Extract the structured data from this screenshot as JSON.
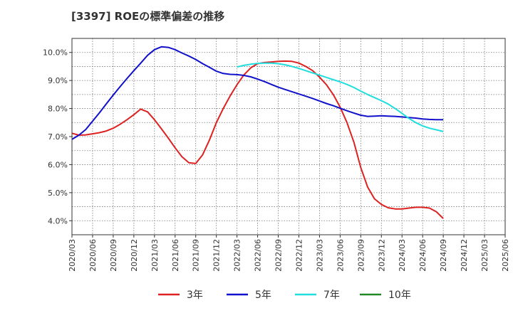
{
  "chart_data": {
    "type": "line",
    "title": "[3397]  ROEの標準偏差の推移",
    "xlabel": "",
    "ylabel": "",
    "ylim": [
      3.5,
      10.5
    ],
    "y_ticks": [
      "4.0%",
      "5.0%",
      "6.0%",
      "7.0%",
      "8.0%",
      "9.0%",
      "10.0%"
    ],
    "y_tick_values": [
      4.0,
      5.0,
      6.0,
      7.0,
      8.0,
      9.0,
      10.0
    ],
    "x_start": "2020/03",
    "x_ticks": [
      "2020/03",
      "2020/06",
      "2020/09",
      "2020/12",
      "2021/03",
      "2021/06",
      "2021/09",
      "2021/12",
      "2022/03",
      "2022/06",
      "2022/09",
      "2022/12",
      "2023/03",
      "2023/06",
      "2023/09",
      "2023/12",
      "2024/03",
      "2024/06",
      "2024/09",
      "2024/12",
      "2025/03",
      "2025/06"
    ],
    "grid": true,
    "legend_position": "bottom",
    "series": [
      {
        "name": "3年",
        "color": "#dd2222",
        "start_index": 0,
        "values": [
          7.12,
          7.05,
          7.06,
          7.1,
          7.14,
          7.2,
          7.3,
          7.44,
          7.6,
          7.78,
          7.98,
          7.88,
          7.6,
          7.28,
          6.95,
          6.6,
          6.28,
          6.07,
          6.04,
          6.35,
          6.88,
          7.5,
          8.0,
          8.45,
          8.85,
          9.2,
          9.45,
          9.6,
          9.64,
          9.66,
          9.68,
          9.69,
          9.68,
          9.62,
          9.5,
          9.35,
          9.12,
          8.85,
          8.5,
          8.05,
          7.5,
          6.8,
          5.9,
          5.2,
          4.78,
          4.58,
          4.46,
          4.42,
          4.42,
          4.45,
          4.48,
          4.48,
          4.45,
          4.32,
          4.08
        ]
      },
      {
        "name": "5年",
        "color": "#1111cc",
        "start_index": 0,
        "values": [
          6.9,
          7.05,
          7.25,
          7.55,
          7.85,
          8.17,
          8.48,
          8.78,
          9.07,
          9.35,
          9.62,
          9.9,
          10.1,
          10.2,
          10.18,
          10.1,
          9.98,
          9.87,
          9.75,
          9.6,
          9.47,
          9.33,
          9.25,
          9.22,
          9.21,
          9.18,
          9.13,
          9.05,
          8.96,
          8.86,
          8.76,
          8.68,
          8.6,
          8.52,
          8.44,
          8.36,
          8.27,
          8.18,
          8.1,
          8.01,
          7.92,
          7.84,
          7.76,
          7.72,
          7.73,
          7.74,
          7.73,
          7.72,
          7.7,
          7.68,
          7.66,
          7.63,
          7.61,
          7.6,
          7.6
        ]
      },
      {
        "name": "7年",
        "color": "#22dddd",
        "start_index": 24,
        "values": [
          9.48,
          9.54,
          9.58,
          9.61,
          9.62,
          9.62,
          9.6,
          9.56,
          9.5,
          9.43,
          9.35,
          9.27,
          9.19,
          9.11,
          9.03,
          8.95,
          8.86,
          8.75,
          8.62,
          8.5,
          8.39,
          8.28,
          8.16,
          8.0,
          7.83,
          7.65,
          7.5,
          7.38,
          7.3,
          7.24,
          7.18
        ]
      },
      {
        "name": "10年",
        "color": "#228822",
        "start_index": 0,
        "values": []
      }
    ]
  }
}
